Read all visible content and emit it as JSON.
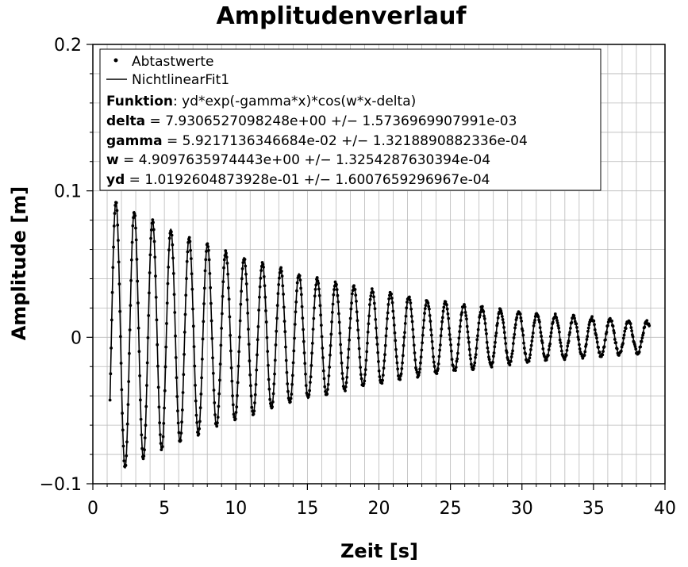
{
  "chart_data": {
    "type": "scatter",
    "title": "Amplitudenverlauf",
    "xlabel": "Zeit [s]",
    "ylabel": "Amplitude [m]",
    "xlim": [
      0,
      40
    ],
    "ylim": [
      -0.1,
      0.2
    ],
    "x_ticks": [
      0,
      5,
      10,
      15,
      20,
      25,
      30,
      35,
      40
    ],
    "x_tick_labels": [
      "0",
      "5",
      "10",
      "15",
      "20",
      "25",
      "30",
      "35",
      "40"
    ],
    "y_ticks": [
      -0.1,
      0,
      0.1,
      0.2
    ],
    "y_tick_labels": [
      "−0.1",
      "0",
      "0.1",
      "0.2"
    ],
    "grid": true,
    "legend_position": "top-left",
    "series": [
      {
        "name": "Abtastwerte",
        "kind": "scatter",
        "marker": "dot",
        "color": "#000000",
        "x_range": [
          1.2,
          38.9
        ],
        "sample_step": 0.0408,
        "model": "yd*exp(-gamma*x)*cos(w*x-delta)"
      },
      {
        "name": "NichtlinearFit1",
        "kind": "line",
        "color": "#000000",
        "x_range": [
          1.2,
          38.9
        ],
        "model": "yd*exp(-gamma*x)*cos(w*x-delta)"
      }
    ],
    "fit": {
      "function_label": "Funktion",
      "function": "yd*exp(-gamma*x)*cos(w*x-delta)",
      "parameters": [
        {
          "name": "delta",
          "value": 7.9306527098248,
          "value_text": "7.9306527098248e+00",
          "error_text": "1.5736969907991e-03"
        },
        {
          "name": "gamma",
          "value": 0.059217136346684,
          "value_text": "5.9217136346684e-02",
          "error_text": "1.3218890882336e-04"
        },
        {
          "name": "w",
          "value": 4.909763597444,
          "value_text": "4.9097635974443e+00",
          "error_text": "1.3254287630394e-04"
        },
        {
          "name": "yd",
          "value": 0.10192604873928,
          "value_text": "1.0192604873928e-01",
          "error_text": "1.6007659296967e-04"
        }
      ]
    }
  },
  "legend": {
    "entries": [
      "Abtastwerte",
      "NichtlinearFit1"
    ],
    "equals": "=",
    "pm": "+/−"
  }
}
